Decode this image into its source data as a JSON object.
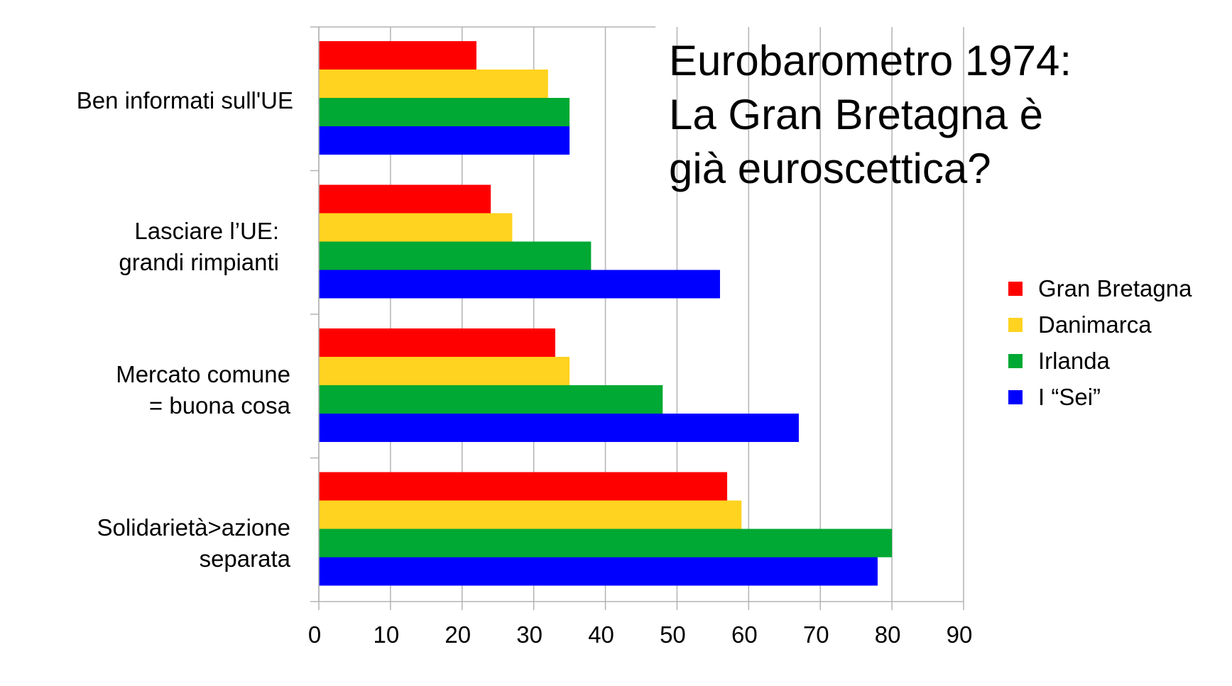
{
  "chart_data": {
    "type": "bar",
    "orientation": "horizontal",
    "title_lines": [
      "Eurobarometro 1974:",
      "La Gran Bretagna è",
      "già euroscettica?"
    ],
    "category_lines": [
      [
        "Ben informati sull'UE"
      ],
      [
        "Lasciare l’UE:",
        "grandi rimpianti"
      ],
      [
        "Mercato comune",
        "= buona cosa"
      ],
      [
        "Solidarietà>azione",
        "separata"
      ]
    ],
    "series": [
      {
        "name": "Gran Bretagna",
        "color": "#ff0000",
        "values": [
          22,
          24,
          33,
          57
        ]
      },
      {
        "name": "Danimarca",
        "color": "#ffd320",
        "values": [
          32,
          27,
          35,
          59
        ]
      },
      {
        "name": "Irlanda",
        "color": "#00a933",
        "values": [
          35,
          38,
          48,
          80
        ]
      },
      {
        "name": "I “Sei”",
        "color": "#0000ff",
        "values": [
          35,
          56,
          67,
          78
        ]
      }
    ],
    "xlim": [
      0,
      90
    ],
    "xticks": [
      "0",
      "10",
      "20",
      "30",
      "40",
      "50",
      "60",
      "70",
      "80",
      "90"
    ],
    "grid": true,
    "legend_position": "right"
  }
}
